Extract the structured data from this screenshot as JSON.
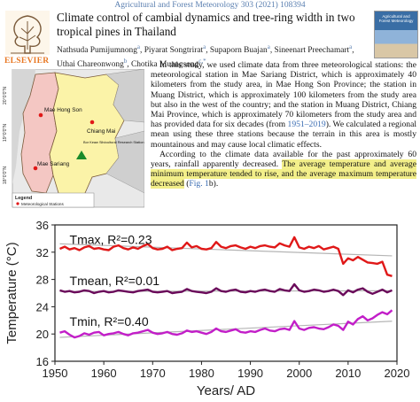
{
  "header": {
    "journal": "Agricultural and Forest Meteorology 303 (2021) 108394",
    "publisher": "ELSEVIER",
    "cover_title": "Agricultural and Forest Meteorology"
  },
  "article": {
    "title": "Climate control of cambial dynamics and tree-ring width in two tropical pines in Thailand",
    "authors": [
      {
        "name": "Nathsuda Pumijumnong",
        "sup": "a"
      },
      {
        "name": "Piyarat Songtrirat",
        "sup": "a"
      },
      {
        "name": "Supaporn Buajan",
        "sup": "a"
      },
      {
        "name": "Sineenart Preechamart",
        "sup": "a"
      },
      {
        "name": "Uthai Chareonwong",
        "sup": "b"
      },
      {
        "name": "Chotika Muangsong",
        "sup": "c,*"
      }
    ],
    "paragraph1_a": "In this study, we used climate data from three meteorological stations: the meteorological station in Mae Sariang District, which is approximately 40 kilometers from the study area, in Mae Hong Son Province; the station in Muang District, which is approximately 100 kilometers from the study area but also in the west of the country; and the station in Muang District, Chiang Mai Province, which is approximately 70 kilometers from the study area and has provided data for six decades (from ",
    "paragraph1_link": "1951–2019",
    "paragraph1_b": "). We calculated a regional mean using these three stations because the terrain in this area is mostly mountainous and may cause local climatic effects.",
    "paragraph2_a": "According to the climate data available for the past approximately 60 years, rainfall apparently decreased. ",
    "paragraph2_highlight": "The average temperature and average minimum temperature tended to rise, and the average maximum temperature decreased",
    "paragraph2_open": " (",
    "paragraph2_link": "Fig. 1",
    "paragraph2_end": "b)."
  },
  "map": {
    "lat_labels": [
      "20°0'0\"N",
      "19°0'0\"N",
      "18°0'0\"N"
    ],
    "places": [
      "Mae Hong Son",
      "Chiang Mai",
      "Mae Sariang",
      "Bor Keaw Silvicultural Research Station"
    ],
    "legend_title": "Legend",
    "legend_item": "Meteorological Stations",
    "colors": {
      "province_west": "#f4c7c3",
      "province_east": "#fbf3a8",
      "neighbor": "#cfcfcf",
      "station": "#e01818"
    }
  },
  "chart_data": {
    "type": "line",
    "x": [
      1951,
      1952,
      1953,
      1954,
      1955,
      1956,
      1957,
      1958,
      1959,
      1960,
      1961,
      1962,
      1963,
      1964,
      1965,
      1966,
      1967,
      1968,
      1969,
      1970,
      1971,
      1972,
      1973,
      1974,
      1975,
      1976,
      1977,
      1978,
      1979,
      1980,
      1981,
      1982,
      1983,
      1984,
      1985,
      1986,
      1987,
      1988,
      1989,
      1990,
      1991,
      1992,
      1993,
      1994,
      1995,
      1996,
      1997,
      1998,
      1999,
      2000,
      2001,
      2002,
      2003,
      2004,
      2005,
      2006,
      2007,
      2008,
      2009,
      2010,
      2011,
      2012,
      2013,
      2014,
      2015,
      2016,
      2017,
      2018,
      2019
    ],
    "series": [
      {
        "name": "Tmax",
        "r2_label": "Tmax, R²=0.23",
        "color": "#e01818",
        "values": [
          32.5,
          32.8,
          32.4,
          32.6,
          32.3,
          32.7,
          32.9,
          32.5,
          32.6,
          32.4,
          32.3,
          32.8,
          33.0,
          32.6,
          32.4,
          32.7,
          32.5,
          32.9,
          33.2,
          32.6,
          32.4,
          32.5,
          32.8,
          32.3,
          32.5,
          32.6,
          33.4,
          32.7,
          32.9,
          32.5,
          32.4,
          32.6,
          33.5,
          32.8,
          32.6,
          32.9,
          33.0,
          32.7,
          32.5,
          32.8,
          32.6,
          32.9,
          33.0,
          32.8,
          32.7,
          33.3,
          33.0,
          32.8,
          34.2,
          32.7,
          32.5,
          32.8,
          32.6,
          32.9,
          32.4,
          32.6,
          32.8,
          32.5,
          30.3,
          31.1,
          30.8,
          31.3,
          30.9,
          30.5,
          30.4,
          30.3,
          30.6,
          28.7,
          28.5
        ]
      },
      {
        "name": "Tmean",
        "r2_label": "Tmean, R²=0.01",
        "color": "#6a0a5a",
        "values": [
          26.4,
          26.2,
          26.3,
          26.1,
          26.2,
          26.4,
          26.3,
          26.0,
          26.2,
          26.3,
          26.1,
          26.2,
          26.4,
          26.3,
          26.2,
          26.1,
          26.3,
          26.4,
          26.5,
          26.2,
          26.1,
          26.2,
          26.3,
          26.0,
          26.1,
          26.2,
          26.6,
          26.3,
          26.2,
          26.1,
          26.0,
          26.2,
          26.7,
          26.3,
          26.2,
          26.4,
          26.5,
          26.2,
          26.1,
          26.3,
          26.2,
          26.4,
          26.5,
          26.3,
          26.2,
          26.6,
          26.4,
          26.3,
          27.3,
          26.4,
          26.2,
          26.3,
          26.5,
          26.4,
          26.2,
          26.3,
          26.5,
          26.3,
          25.7,
          26.4,
          26.1,
          26.5,
          26.7,
          26.2,
          25.9,
          26.2,
          26.5,
          26.1,
          26.4
        ]
      },
      {
        "name": "Tmin",
        "r2_label": "Tmin, R²=0.40",
        "color": "#c21ec8",
        "values": [
          20.2,
          20.4,
          19.9,
          19.5,
          19.7,
          20.1,
          19.9,
          20.2,
          20.3,
          19.8,
          20.0,
          20.1,
          20.3,
          20.0,
          19.8,
          20.1,
          20.2,
          20.4,
          20.6,
          20.2,
          20.0,
          20.1,
          20.3,
          20.0,
          19.9,
          20.1,
          20.5,
          20.3,
          20.4,
          20.2,
          20.0,
          20.3,
          20.8,
          20.4,
          20.3,
          20.5,
          20.7,
          20.3,
          20.2,
          20.4,
          20.3,
          20.6,
          20.8,
          20.5,
          20.4,
          20.7,
          20.8,
          20.6,
          21.9,
          20.8,
          20.6,
          20.9,
          21.0,
          20.8,
          20.7,
          21.0,
          21.4,
          21.2,
          20.6,
          21.8,
          21.4,
          22.2,
          22.6,
          22.0,
          22.3,
          22.8,
          23.2,
          22.9,
          23.5
        ]
      }
    ],
    "xlabel": "Years/ AD",
    "ylabel": "Temperature (°C)",
    "xlim": [
      1950,
      2020
    ],
    "ylim": [
      16,
      36
    ],
    "xticks": [
      1950,
      1960,
      1970,
      1980,
      1990,
      2000,
      2010,
      2020
    ],
    "yticks": [
      16,
      20,
      24,
      28,
      32,
      36
    ],
    "trend_color": "#b5b5b5",
    "grid": false
  }
}
